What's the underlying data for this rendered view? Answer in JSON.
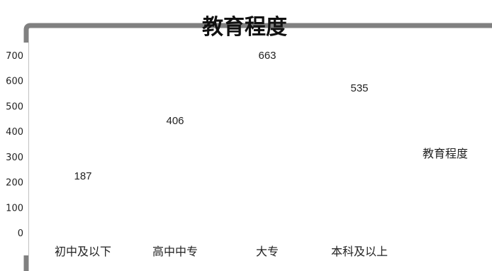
{
  "chart_data": {
    "type": "bar",
    "title": "教育程度",
    "categories": [
      "初中及以下",
      "高中中专",
      "大专",
      "本科及以上"
    ],
    "series": [
      {
        "name": "教育程度",
        "values": [
          187,
          406,
          663,
          535
        ]
      }
    ],
    "data_labels": [
      "187",
      "406",
      "663",
      "535"
    ],
    "y_ticks": [
      "0",
      "100",
      "200",
      "300",
      "400",
      "500",
      "600",
      "700"
    ],
    "ylim": [
      0,
      700
    ],
    "legend_position": "right",
    "grid": false,
    "colors": {
      "frame": "#808080",
      "text": "#222222"
    }
  }
}
